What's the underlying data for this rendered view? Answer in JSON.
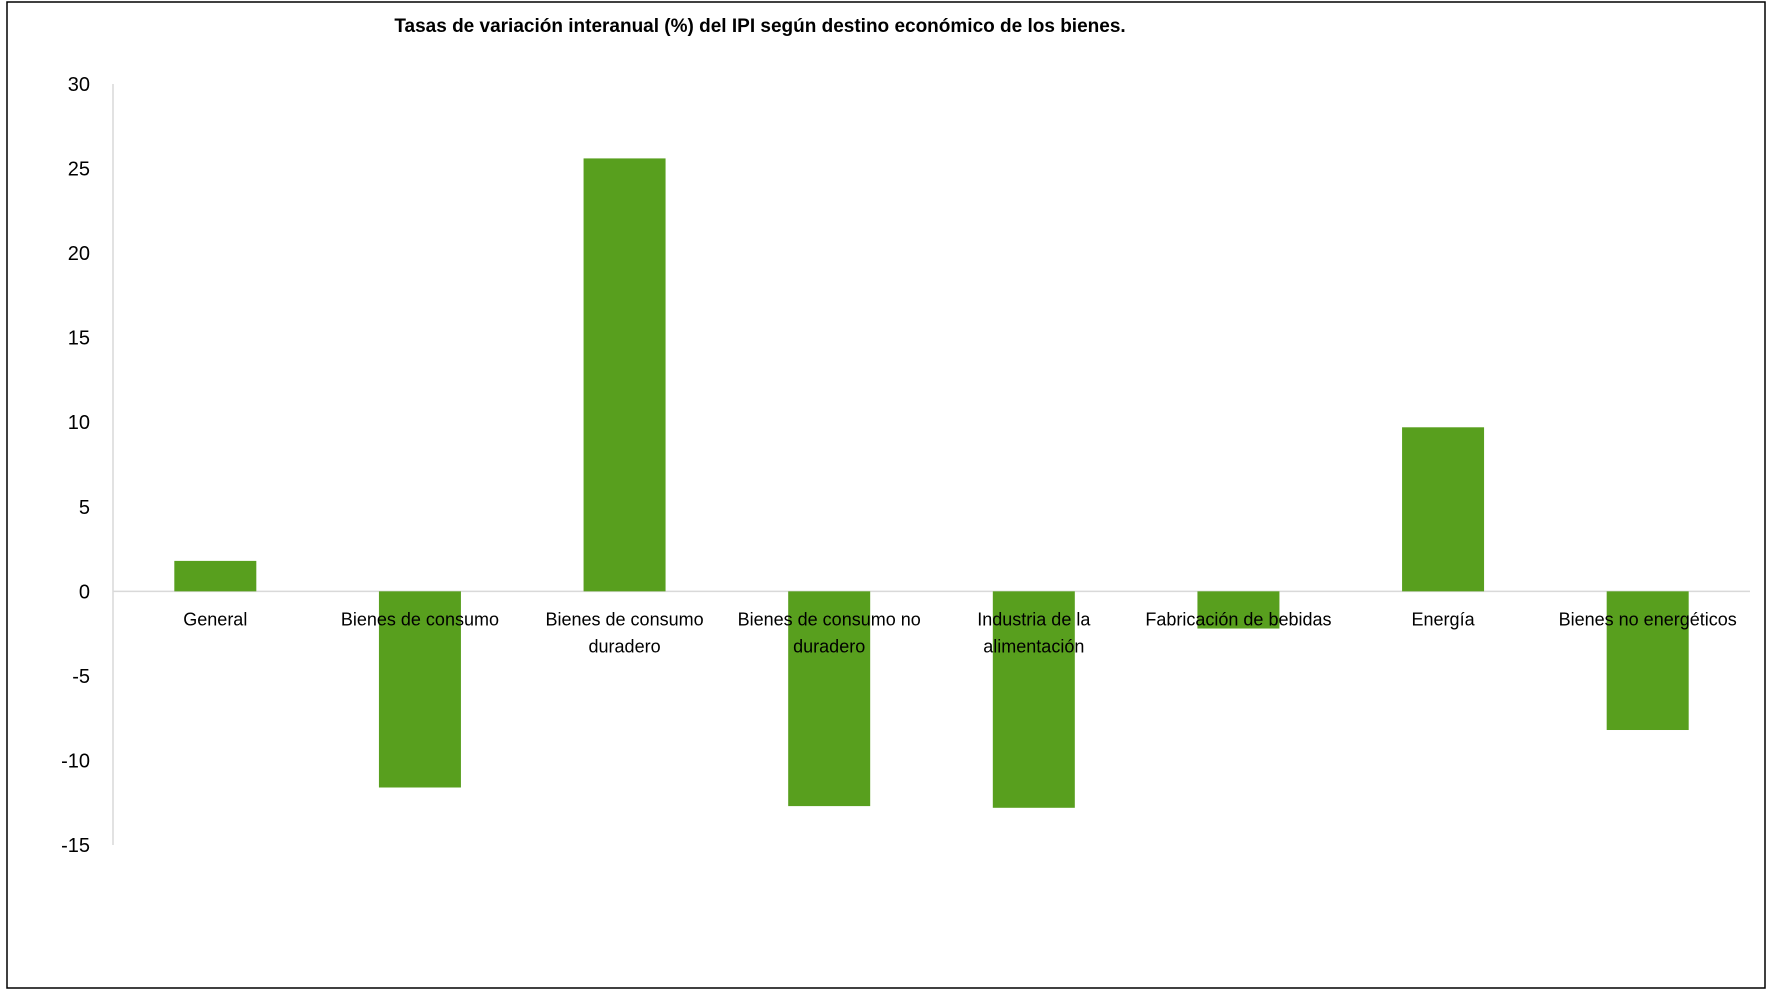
{
  "chart_data": {
    "type": "bar",
    "title": "Tasas de variación interanual (%) del IPI según destino económico de los bienes.",
    "xlabel": "",
    "ylabel": "",
    "categories": [
      "General",
      "Bienes de consumo",
      "Bienes de consumo duradero",
      "Bienes de consumo no duradero",
      "Industria de la alimentación",
      "Fabricación de bebidas",
      "Energía",
      "Bienes no energéticos"
    ],
    "category_lines": [
      [
        "General"
      ],
      [
        "Bienes de consumo"
      ],
      [
        "Bienes de consumo",
        "duradero"
      ],
      [
        "Bienes de consumo no",
        "duradero"
      ],
      [
        "Industria de la",
        "alimentación"
      ],
      [
        "Fabricación de bebidas"
      ],
      [
        "Energía"
      ],
      [
        "Bienes no energéticos"
      ]
    ],
    "values": [
      1.8,
      -11.6,
      25.6,
      -12.7,
      -12.8,
      -2.2,
      9.7,
      -8.2
    ],
    "ylim": [
      -15,
      30
    ],
    "yticks": [
      30,
      25,
      20,
      15,
      10,
      5,
      0,
      -5,
      -10,
      -15
    ],
    "grid": false,
    "legend": "none",
    "bar_color": "#589f1e",
    "axis_color": "#d9d9d9"
  }
}
